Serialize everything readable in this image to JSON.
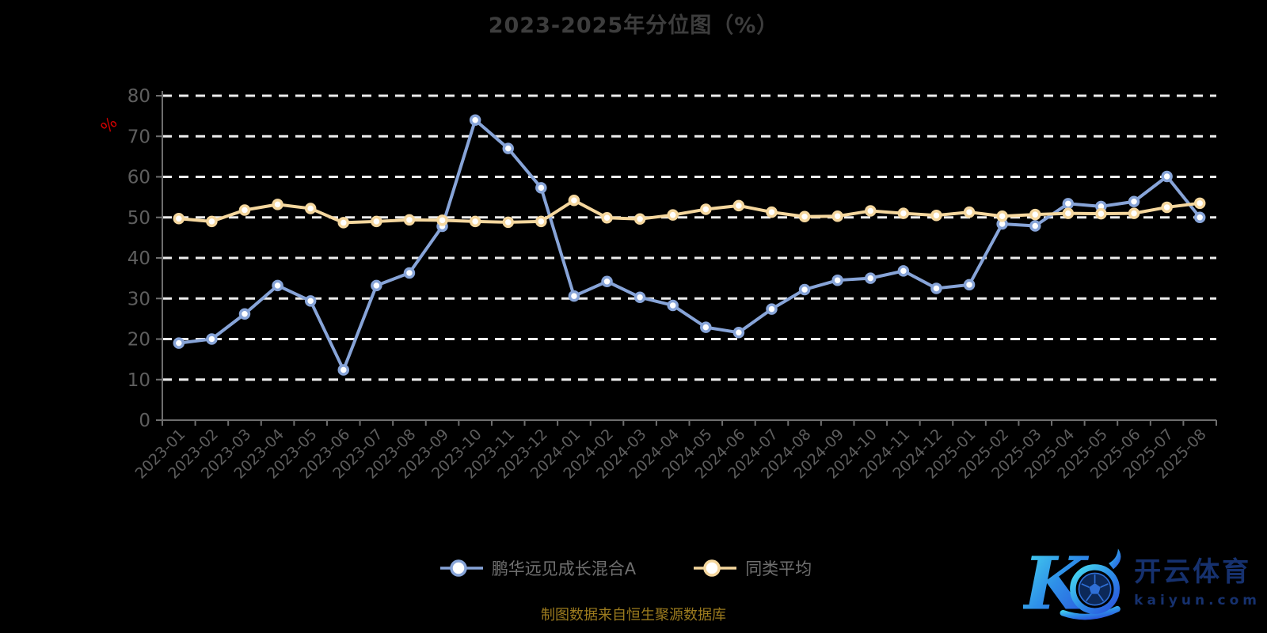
{
  "header": {
    "title": "2023-2025年分位图（%）"
  },
  "footer": {
    "source_note": "制图数据来自恒生聚源数据库"
  },
  "watermark": {
    "brand": "开云体育",
    "domain": "kaiyun.com"
  },
  "colors": {
    "background": "#000000",
    "grid_line": "#ededed",
    "axis_line": "#6e6e6e",
    "tick_label": "#5e5e5e",
    "title_text": "#3d3d3d",
    "legend_text": "#6f6f6f",
    "ylabel_text": "#d40000",
    "source_note_text": "#9c7b1e",
    "marker_fill": "#ffffff",
    "watermark_text": "#16316e",
    "watermark_gradient": [
      "#49e0f0",
      "#2e8fe8",
      "#2b50dc"
    ]
  },
  "chart_data": {
    "type": "line",
    "title": "2023-2025年分位图（%）",
    "ylabel": "%",
    "xlabel": "",
    "ylim": [
      0,
      80
    ],
    "y_ticks": [
      0,
      10,
      20,
      30,
      40,
      50,
      60,
      70,
      80
    ],
    "grid": "horizontal-dashed-white",
    "legend_position": "bottom-center",
    "x_label_rotate": 45,
    "categories": [
      "2023-01",
      "2023-02",
      "2023-03",
      "2023-04",
      "2023-05",
      "2023-06",
      "2023-07",
      "2023-08",
      "2023-09",
      "2023-10",
      "2023-11",
      "2023-12",
      "2024-01",
      "2024-02",
      "2024-03",
      "2024-04",
      "2024-05",
      "2024-06",
      "2024-07",
      "2024-08",
      "2024-09",
      "2024-10",
      "2024-11",
      "2024-12",
      "2025-01",
      "2025-02",
      "2025-03",
      "2025-04",
      "2025-05",
      "2025-06",
      "2025-07",
      "2025-08"
    ],
    "series": [
      {
        "name": "鹏华远见成长混合A",
        "color": "#87a4d8",
        "values": [
          19,
          20,
          26.2,
          33.2,
          29.4,
          12.4,
          33.2,
          36.3,
          47.8,
          74,
          67,
          57.3,
          30.6,
          34.2,
          30.3,
          28.3,
          22.9,
          21.6,
          27.4,
          32.2,
          34.5,
          35,
          36.8,
          32.5,
          33.4,
          48.4,
          47.9,
          53.4,
          52.7,
          53.9,
          60.1,
          50
        ]
      },
      {
        "name": "同类平均",
        "color": "#f5d79e",
        "values": [
          49.7,
          49,
          51.8,
          53.2,
          52.2,
          48.7,
          49,
          49.4,
          49.3,
          49,
          48.8,
          49,
          54.2,
          49.9,
          49.6,
          50.6,
          52,
          52.9,
          51.3,
          50.2,
          50.3,
          51.6,
          51,
          50.5,
          51.3,
          50.3,
          50.7,
          51,
          50.9,
          51,
          52.5,
          53.5
        ]
      }
    ]
  }
}
